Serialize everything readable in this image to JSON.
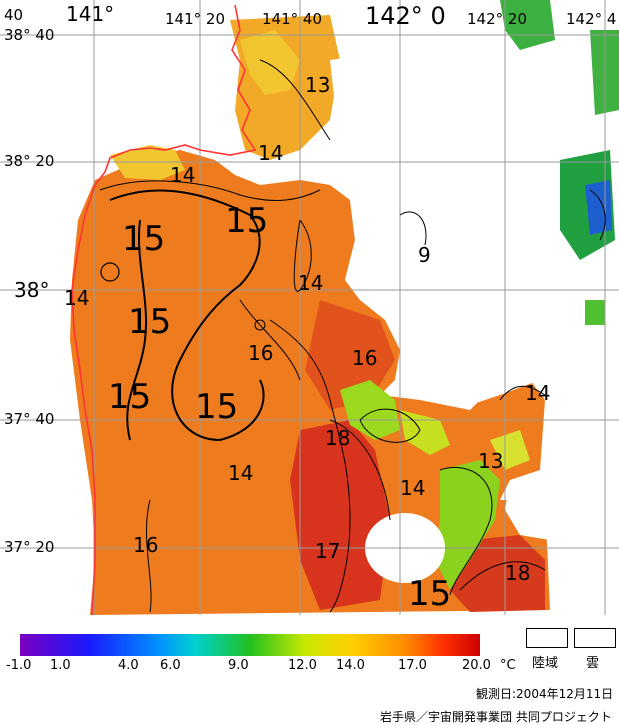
{
  "map": {
    "longitude_labels": [
      "141°",
      "141° 20",
      "141° 40",
      "142° 0",
      "142° 20",
      "142° 4"
    ],
    "latitude_labels": [
      "38° 40",
      "38° 20",
      "38°",
      "37° 40",
      "37° 20"
    ],
    "top_left_corner_label": "40",
    "contour_labels": [
      "13",
      "14",
      "14",
      "14",
      "15",
      "15",
      "15",
      "15",
      "15",
      "14",
      "16",
      "16",
      "18",
      "14",
      "13",
      "14",
      "17",
      "15",
      "18",
      "16",
      "9",
      "14"
    ],
    "colors": {
      "orange": "#ef7d1d",
      "red": "#d8321d",
      "yellow": "#f2c630",
      "green": "#7dd21e",
      "blue": "#2048cc",
      "land_line": "#ff3333"
    }
  },
  "colorbar": {
    "ticks": [
      "-1.0",
      "1.0",
      "4.0",
      "6.0",
      "9.0",
      "12.0",
      "14.0",
      "17.0",
      "20.0"
    ],
    "unit": "°C",
    "stops": [
      "#7a00c0",
      "#1a1aff",
      "#0090ff",
      "#00d0d0",
      "#20c020",
      "#c8e800",
      "#ffd000",
      "#ff8a00",
      "#ff3000",
      "#cc0000"
    ]
  },
  "legend": {
    "land_label": "陸域",
    "cloud_label": "雲"
  },
  "footer": {
    "observation_date": "観測日:2004年12月11日",
    "credit": "岩手県／宇宙開発事業団 共同プロジェクト"
  }
}
